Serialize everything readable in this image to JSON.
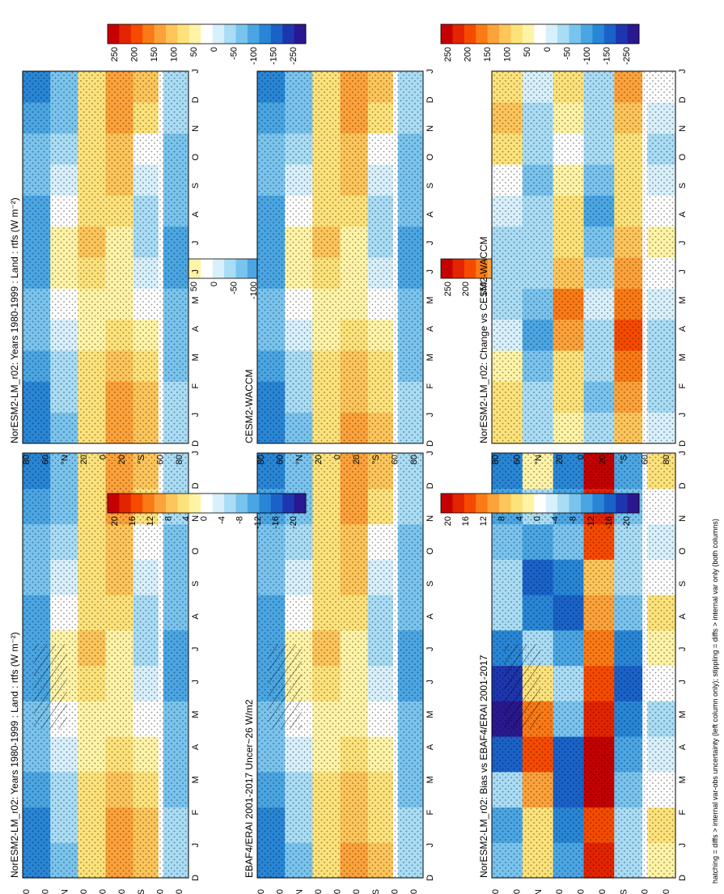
{
  "chart_data": {
    "type": "heatmap",
    "orientation": "rotated 90 degrees counter-clockwise",
    "footnote": "hatching = diffs > internal var-obs uncertainty (left column only); stippling = diffs > internal var only (both columns)",
    "month_ticks": [
      "D",
      "J",
      "F",
      "M",
      "A",
      "M",
      "J",
      "J",
      "A",
      "S",
      "O",
      "N",
      "D",
      "J"
    ],
    "lat_ticks": [
      "80",
      "60",
      "°N",
      "20",
      "0",
      "20",
      "°S",
      "60",
      "80"
    ],
    "panels": [
      {
        "id": "top-left",
        "title": "NorESM2-LM_r02: Years 1980-1999 : Land : rtfs (W m⁻²)",
        "kind": "climatology",
        "colorbar": [
          "250",
          "200",
          "150",
          "100",
          "50",
          "0",
          "-50",
          "-100",
          "-150",
          "-250"
        ],
        "hatched": true,
        "values": [
          [
            -150,
            -150,
            -120,
            -100,
            -80,
            -120,
            -140,
            -120,
            -90,
            -100,
            -130,
            -150
          ],
          [
            -80,
            -70,
            -60,
            -30,
            0,
            20,
            30,
            10,
            -20,
            -60,
            -80,
            -80
          ],
          [
            60,
            60,
            50,
            40,
            40,
            70,
            80,
            70,
            60,
            50,
            50,
            60
          ],
          [
            120,
            110,
            90,
            60,
            30,
            20,
            40,
            60,
            80,
            100,
            120,
            130
          ],
          [
            90,
            80,
            60,
            30,
            -10,
            -40,
            -60,
            -50,
            -30,
            10,
            60,
            90
          ],
          [
            -60,
            -70,
            -80,
            -90,
            -100,
            -110,
            -110,
            -100,
            -90,
            -80,
            -70,
            -60
          ]
        ]
      },
      {
        "id": "mid-left",
        "title": "EBAF4/ERAI 2001-2017 Uncer~26 W/m2",
        "kind": "climatology",
        "colorbar": [
          "250",
          "200",
          "150",
          "100",
          "50",
          "0",
          "-50",
          "-100",
          "-150",
          "-250"
        ],
        "hatched": true,
        "values": [
          [
            -150,
            -150,
            -120,
            -100,
            -80,
            -120,
            -140,
            -120,
            -90,
            -100,
            -130,
            -150
          ],
          [
            -80,
            -70,
            -60,
            -30,
            0,
            20,
            30,
            10,
            -20,
            -60,
            -80,
            -80
          ],
          [
            60,
            60,
            50,
            40,
            40,
            70,
            80,
            70,
            60,
            50,
            50,
            60
          ],
          [
            110,
            100,
            80,
            60,
            30,
            20,
            30,
            60,
            80,
            100,
            110,
            120
          ],
          [
            80,
            70,
            60,
            30,
            -10,
            -40,
            -60,
            -50,
            -30,
            10,
            60,
            80
          ],
          [
            -60,
            -70,
            -80,
            -90,
            -100,
            -110,
            -110,
            -100,
            -90,
            -80,
            -70,
            -60
          ]
        ]
      },
      {
        "id": "bottom-left",
        "title": "NorESM2-LM_r02: Bias vs EBAF4/ERAI 2001-2017",
        "kind": "difference",
        "colorbar": [
          "20",
          "16",
          "12",
          "8",
          "4",
          "0",
          "-4",
          "-8",
          "-12",
          "-16",
          "-20"
        ],
        "hatched": true,
        "values": [
          [
            -8,
            -10,
            -6,
            -14,
            -20,
            -18,
            -12,
            -6,
            -4,
            -8,
            -10,
            -12
          ],
          [
            4,
            6,
            10,
            14,
            12,
            6,
            -4,
            -12,
            -16,
            -10,
            -4,
            2
          ],
          [
            -10,
            -12,
            -16,
            -14,
            -8,
            -6,
            -10,
            -14,
            -12,
            -8,
            -10,
            -12
          ],
          [
            18,
            16,
            20,
            22,
            18,
            14,
            12,
            10,
            8,
            14,
            18,
            20
          ],
          [
            -6,
            -4,
            -8,
            -10,
            -12,
            -14,
            -12,
            -8,
            -4,
            -6,
            -8,
            -10
          ],
          [
            2,
            4,
            0,
            -2,
            -4,
            0,
            2,
            4,
            0,
            -2,
            0,
            4
          ]
        ]
      },
      {
        "id": "top-right",
        "title": "NorESM2-LM_r02: Years 1980-1999 : Land : rtfs (W m⁻²)",
        "kind": "climatology",
        "colorbar": [
          "250",
          "200",
          "150",
          "100",
          "50",
          "0",
          "-50",
          "-100",
          "-150",
          "-250"
        ],
        "hatched": false,
        "values": [
          [
            -150,
            -150,
            -120,
            -100,
            -80,
            -120,
            -140,
            -120,
            -90,
            -100,
            -130,
            -150
          ],
          [
            -80,
            -70,
            -60,
            -30,
            0,
            20,
            30,
            10,
            -20,
            -60,
            -80,
            -80
          ],
          [
            60,
            60,
            50,
            40,
            40,
            70,
            80,
            70,
            60,
            50,
            50,
            60
          ],
          [
            120,
            110,
            90,
            60,
            30,
            20,
            40,
            60,
            80,
            100,
            120,
            130
          ],
          [
            90,
            80,
            60,
            30,
            -10,
            -40,
            -60,
            -50,
            -30,
            10,
            60,
            90
          ],
          [
            -60,
            -70,
            -80,
            -90,
            -100,
            -110,
            -110,
            -100,
            -90,
            -80,
            -70,
            -60
          ]
        ]
      },
      {
        "id": "mid-right",
        "title": "CESM2-WACCM",
        "kind": "climatology",
        "colorbar": [
          "250",
          "200",
          "150",
          "100",
          "50",
          "0",
          "-50",
          "-100",
          "-150",
          "-200",
          "-250"
        ],
        "hatched": false,
        "values": [
          [
            -150,
            -150,
            -120,
            -100,
            -80,
            -120,
            -140,
            -120,
            -90,
            -100,
            -130,
            -150
          ],
          [
            -80,
            -70,
            -60,
            -30,
            0,
            20,
            30,
            10,
            -20,
            -60,
            -80,
            -80
          ],
          [
            60,
            60,
            50,
            40,
            40,
            70,
            80,
            70,
            60,
            50,
            50,
            60
          ],
          [
            110,
            100,
            80,
            60,
            30,
            20,
            30,
            60,
            80,
            100,
            110,
            120
          ],
          [
            80,
            70,
            60,
            30,
            -10,
            -40,
            -60,
            -50,
            -30,
            10,
            60,
            80
          ],
          [
            -60,
            -70,
            -80,
            -90,
            -100,
            -110,
            -110,
            -100,
            -90,
            -80,
            -70,
            -60
          ]
        ]
      },
      {
        "id": "bottom-right",
        "title": "NorESM2-LM_r02: Change vs CESM2-WACCM",
        "kind": "difference",
        "colorbar": [
          "20",
          "16",
          "12",
          "8",
          "4",
          "0",
          "-4",
          "-8",
          "-12",
          "-16",
          "-20"
        ],
        "hatched": false,
        "values": [
          [
            6,
            4,
            2,
            -2,
            -4,
            -6,
            -4,
            -2,
            0,
            4,
            8,
            6
          ],
          [
            -4,
            -6,
            -8,
            -10,
            -8,
            -6,
            -4,
            -6,
            -8,
            -6,
            -4,
            -2
          ],
          [
            2,
            4,
            6,
            10,
            12,
            8,
            6,
            4,
            2,
            0,
            2,
            4
          ],
          [
            -6,
            -8,
            -6,
            -4,
            -2,
            -4,
            -8,
            -10,
            -8,
            -6,
            -4,
            -6
          ],
          [
            8,
            10,
            12,
            14,
            12,
            10,
            8,
            6,
            4,
            6,
            8,
            10
          ],
          [
            -2,
            -4,
            -6,
            -4,
            -2,
            0,
            2,
            0,
            -2,
            -4,
            -2,
            0
          ]
        ]
      }
    ]
  },
  "colors": {
    "divergent": [
      "#c40000",
      "#e32400",
      "#f54a00",
      "#fa7a15",
      "#fca23a",
      "#fdc55a",
      "#fde27a",
      "#fff3a6",
      "#ffffff",
      "#d7f0fb",
      "#a9dcf5",
      "#79c4ee",
      "#4aa6e3",
      "#2986d6",
      "#1a62c8",
      "#1d36b0",
      "#2a1890"
    ]
  }
}
